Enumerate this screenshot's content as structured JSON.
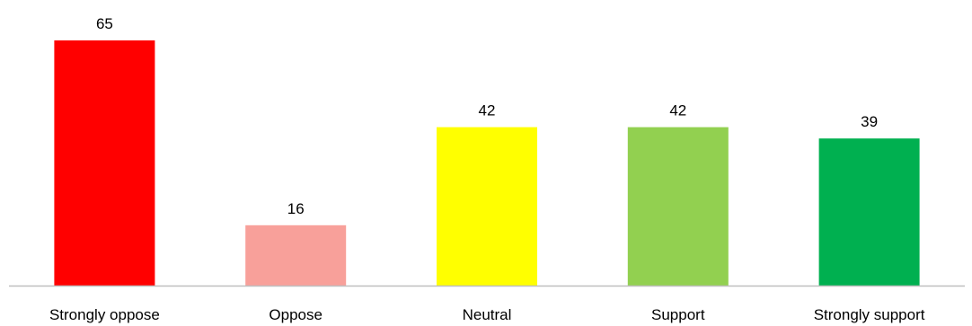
{
  "chart_data": {
    "type": "bar",
    "categories": [
      "Strongly oppose",
      "Oppose",
      "Neutral",
      "Support",
      "Strongly support"
    ],
    "values": [
      65,
      16,
      42,
      42,
      39
    ],
    "colors": [
      "#ff0000",
      "#f8a09a",
      "#ffff00",
      "#92d050",
      "#00b050"
    ],
    "axis_color": "#bfbfbf",
    "data_labels": true,
    "title": "",
    "xlabel": "",
    "ylabel": "",
    "ylim": [
      0,
      65
    ],
    "grid": false,
    "legend": "none"
  }
}
